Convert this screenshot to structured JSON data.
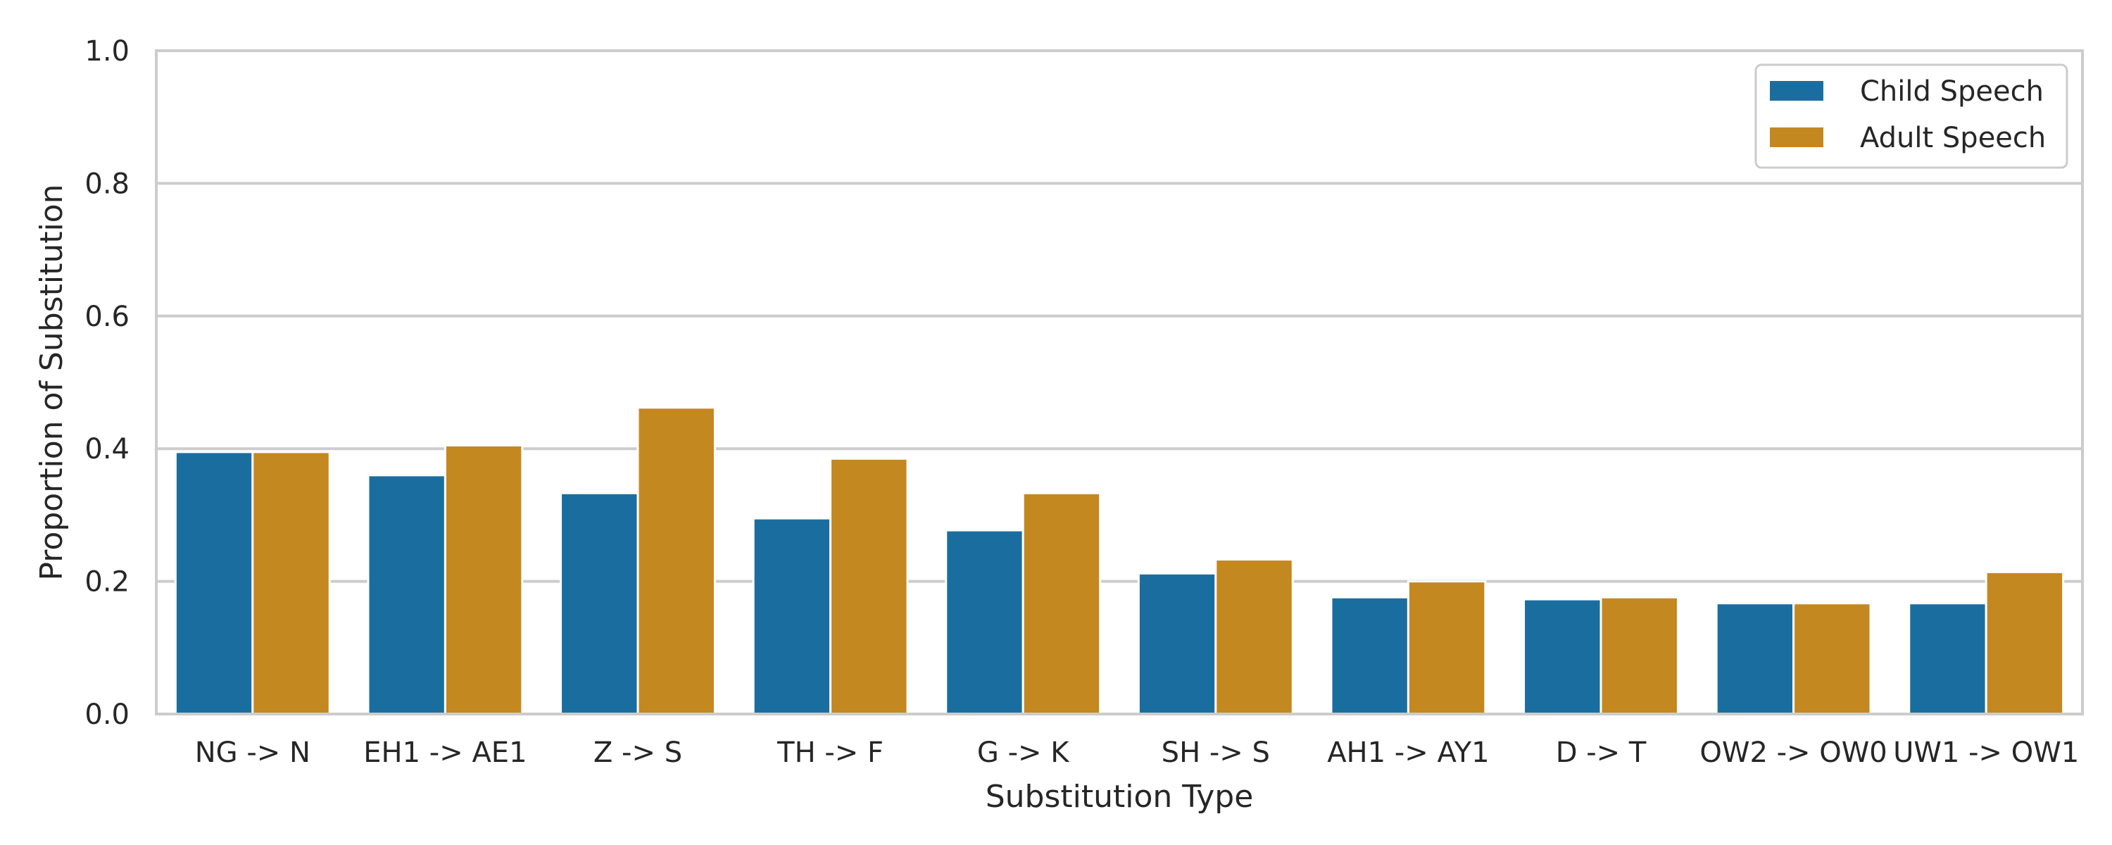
{
  "chart_data": {
    "type": "bar",
    "xlabel": "Substitution Type",
    "ylabel": "Proportion of Substitution",
    "ylim": [
      0,
      1.0
    ],
    "yticks": [
      "0.0",
      "0.2",
      "0.4",
      "0.6",
      "0.8",
      "1.0"
    ],
    "grid": true,
    "legend_position": "top-right",
    "categories": [
      "NG -> N",
      "EH1 -> AE1",
      "Z -> S",
      "TH -> F",
      "G -> K",
      "SH -> S",
      "AH1 -> AY1",
      "D -> T",
      "OW2 -> OW0",
      "UW1 -> OW1"
    ],
    "series": [
      {
        "name": "Child Speech",
        "color": "#1a6e9f",
        "values": [
          0.395,
          0.36,
          0.333,
          0.295,
          0.277,
          0.212,
          0.176,
          0.173,
          0.167,
          0.167
        ]
      },
      {
        "name": "Adult Speech",
        "color": "#c48820",
        "values": [
          0.395,
          0.405,
          0.462,
          0.385,
          0.333,
          0.233,
          0.2,
          0.176,
          0.167,
          0.214
        ]
      }
    ]
  }
}
